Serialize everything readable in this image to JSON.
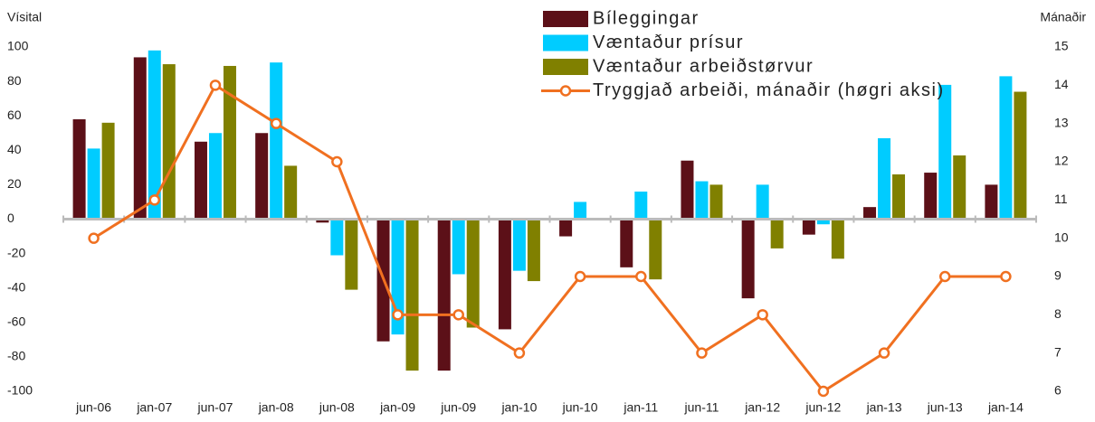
{
  "chart_data": {
    "type": "bar",
    "ylabel": "Vísital",
    "y2label": "Mánaðir",
    "categories": [
      "jun-06",
      "jan-07",
      "jun-07",
      "jan-08",
      "jun-08",
      "jan-09",
      "jun-09",
      "jan-10",
      "jun-10",
      "jan-11",
      "jun-11",
      "jan-12",
      "jun-12",
      "jan-13",
      "jun-13",
      "jan-14"
    ],
    "series": [
      {
        "name": "Bíleggingar",
        "color": "#5c1018",
        "values": [
          58,
          94,
          45,
          50,
          -2,
          -71,
          -88,
          -64,
          -10,
          -28,
          34,
          -46,
          -9,
          7,
          27,
          20
        ]
      },
      {
        "name": "Væntaður prísur",
        "color": "#00ccff",
        "values": [
          41,
          98,
          50,
          91,
          -21,
          -67,
          -32,
          -30,
          10,
          16,
          22,
          20,
          -3,
          47,
          78,
          83
        ]
      },
      {
        "name": "Væntaður arbeiðstørvur",
        "color": "#808000",
        "values": [
          56,
          90,
          89,
          31,
          -41,
          -88,
          -63,
          -36,
          0,
          -35,
          20,
          -17,
          -23,
          26,
          37,
          74
        ]
      },
      {
        "name": "Tryggjað arbeiði, mánaðir (høgri aksi)",
        "color": "#f07020",
        "type": "line",
        "axis": "y2",
        "values": [
          10,
          11,
          14,
          13,
          12,
          8,
          8,
          7,
          9,
          9,
          7,
          8,
          6,
          7,
          9,
          9
        ]
      }
    ],
    "ylim": [
      -100,
      100
    ],
    "yticks": [
      -100,
      -80,
      -60,
      -40,
      -20,
      0,
      20,
      40,
      60,
      80,
      100
    ],
    "y2lim": [
      6,
      15
    ],
    "y2ticks": [
      6,
      7,
      8,
      9,
      10,
      11,
      12,
      13,
      14,
      15
    ]
  }
}
